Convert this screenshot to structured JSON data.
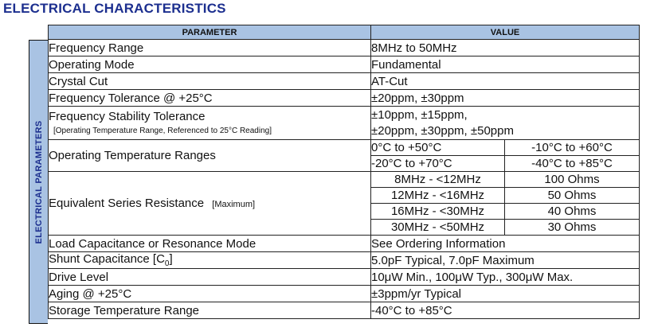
{
  "title": "ELECTRICAL CHARACTERISTICS",
  "side_label": "ELECTRICAL PARAMETERS",
  "header": {
    "parameter": "PARAMETER",
    "value": "VALUE"
  },
  "rows": {
    "freq_range": {
      "param": "Frequency Range",
      "value": "8MHz to 50MHz"
    },
    "op_mode": {
      "param": "Operating Mode",
      "value": "Fundamental"
    },
    "crystal_cut": {
      "param": "Crystal Cut",
      "value": "AT-Cut"
    },
    "freq_tol": {
      "param": "Frequency Tolerance @ +25°C",
      "value": "±20ppm, ±30ppm"
    },
    "freq_stab": {
      "param": "Frequency Stability Tolerance",
      "note": "[Operating Temperature Range, Referenced to 25°C Reading]",
      "value_line1": "±10ppm, ±15ppm,",
      "value_line2": "±20ppm, ±30ppm, ±50ppm"
    },
    "op_temp": {
      "param": "Operating Temperature Ranges",
      "values": [
        "0°C to +50°C",
        "-10°C to +60°C",
        "-20°C to +70°C",
        "-40°C to +85°C"
      ]
    },
    "esr": {
      "param": "Equivalent Series Resistance",
      "param_note": "[Maximum]",
      "rows": [
        {
          "range": "8MHz - <12MHz",
          "ohms": "100 Ohms"
        },
        {
          "range": "12MHz - <16MHz",
          "ohms": "50 Ohms"
        },
        {
          "range": "16MHz - <30MHz",
          "ohms": "40 Ohms"
        },
        {
          "range": "30MHz - <50MHz",
          "ohms": "30 Ohms"
        }
      ]
    },
    "load_cap": {
      "param": "Load Capacitance or Resonance Mode",
      "value": "See Ordering Information"
    },
    "shunt_cap": {
      "param": "Shunt Capacitance  [C",
      "param_sub": "0",
      "param_end": "]",
      "value": "5.0pF Typical, 7.0pF Maximum"
    },
    "drive_level": {
      "param": "Drive Level",
      "value": "10μW Min., 100μW Typ., 300μW Max."
    },
    "aging": {
      "param": "Aging @ +25°C",
      "value": "±3ppm/yr Typical"
    },
    "storage_temp": {
      "param": "Storage Temperature Range",
      "value": "-40°C to +85°C"
    }
  }
}
